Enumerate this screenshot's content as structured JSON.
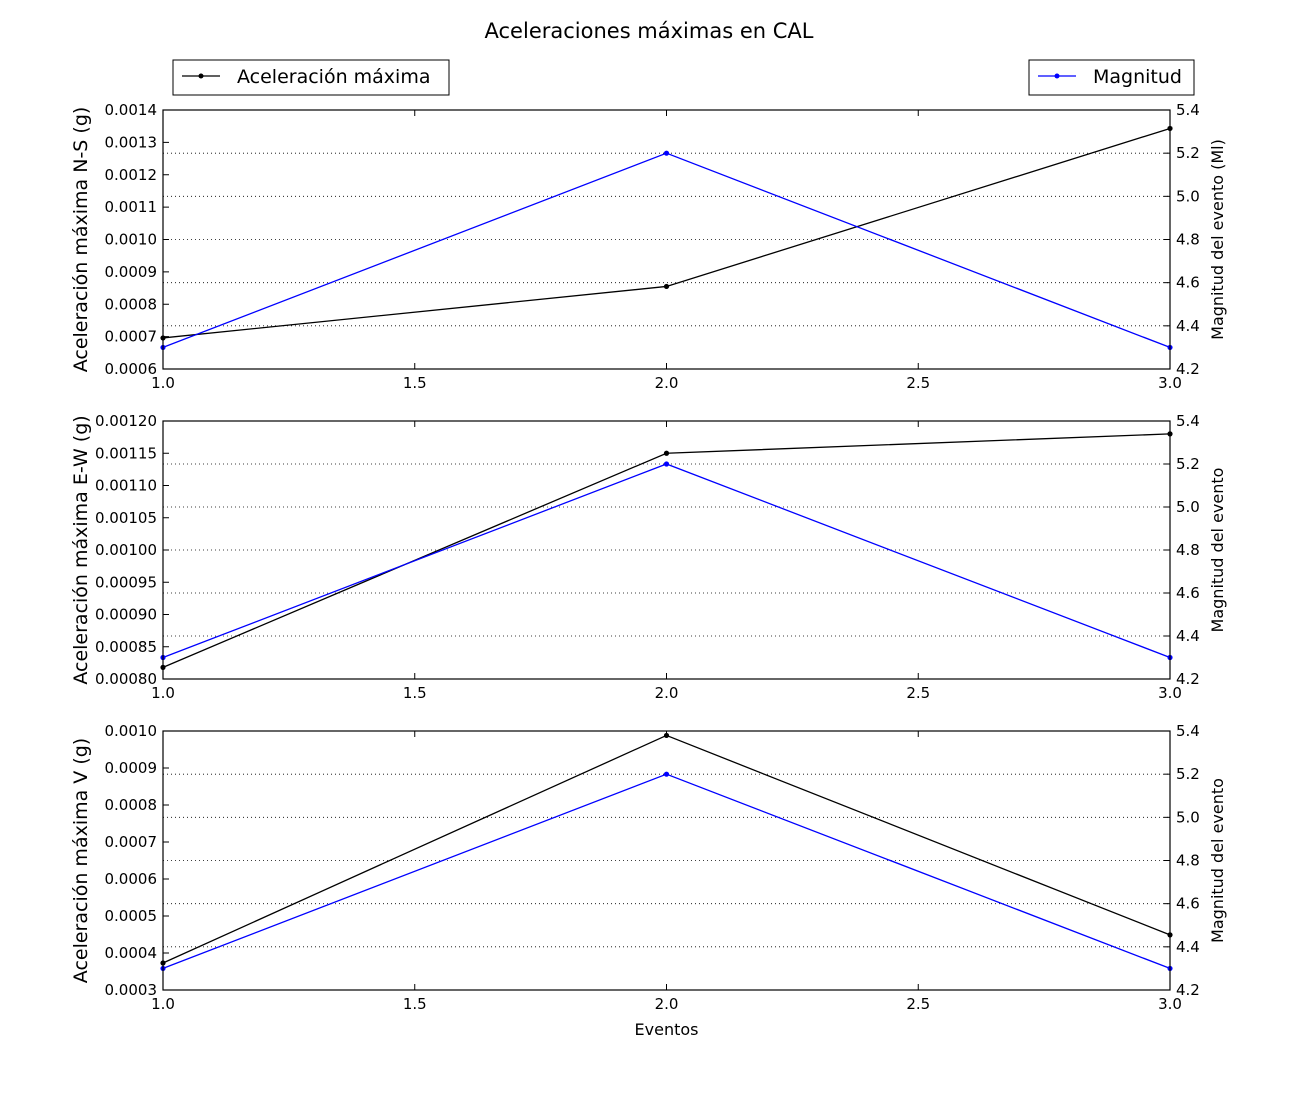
{
  "figure": {
    "title": "Aceleraciones máximas en CAL"
  },
  "legend": {
    "left": {
      "label": "Aceleración máxima",
      "color": "#000000"
    },
    "right": {
      "label": "Magnitud",
      "color": "#0000ff"
    }
  },
  "chart_data": [
    {
      "type": "line",
      "x": [
        1.0,
        2.0,
        3.0
      ],
      "xlim": [
        1.0,
        3.0
      ],
      "xticks": [
        "1.0",
        "1.5",
        "2.0",
        "2.5",
        "3.0"
      ],
      "xlabel": "",
      "ylabel": "Aceleración máxima N-S (g)",
      "ylim": [
        0.0006,
        0.0014
      ],
      "yticks": [
        "0.0006",
        "0.0007",
        "0.0008",
        "0.0009",
        "0.0010",
        "0.0011",
        "0.0012",
        "0.0013",
        "0.0014"
      ],
      "y2label": "Magnitud del evento (Ml)",
      "y2lim": [
        4.2,
        5.4
      ],
      "y2ticks": [
        "4.2",
        "4.4",
        "4.6",
        "4.8",
        "5.0",
        "5.2",
        "5.4"
      ],
      "grid": "y2 dotted",
      "series": [
        {
          "name": "Aceleración máxima",
          "axis": "left",
          "color": "#000000",
          "values": [
            0.000696,
            0.000855,
            0.001343
          ]
        },
        {
          "name": "Magnitud",
          "axis": "right",
          "color": "#0000ff",
          "values": [
            4.3,
            5.2,
            4.3
          ]
        }
      ]
    },
    {
      "type": "line",
      "x": [
        1.0,
        2.0,
        3.0
      ],
      "xlim": [
        1.0,
        3.0
      ],
      "xticks": [
        "1.0",
        "1.5",
        "2.0",
        "2.5",
        "3.0"
      ],
      "xlabel": "",
      "ylabel": "Aceleración máxima E-W (g)",
      "ylim": [
        0.0008,
        0.0012
      ],
      "yticks": [
        "0.00080",
        "0.00085",
        "0.00090",
        "0.00095",
        "0.00100",
        "0.00105",
        "0.00110",
        "0.00115",
        "0.00120"
      ],
      "y2label": "Magnitud del evento",
      "y2lim": [
        4.2,
        5.4
      ],
      "y2ticks": [
        "4.2",
        "4.4",
        "4.6",
        "4.8",
        "5.0",
        "5.2",
        "5.4"
      ],
      "grid": "y2 dotted",
      "series": [
        {
          "name": "Aceleración máxima",
          "axis": "left",
          "color": "#000000",
          "values": [
            0.000818,
            0.00115,
            0.00118
          ]
        },
        {
          "name": "Magnitud",
          "axis": "right",
          "color": "#0000ff",
          "values": [
            4.3,
            5.2,
            4.3
          ]
        }
      ]
    },
    {
      "type": "line",
      "x": [
        1.0,
        2.0,
        3.0
      ],
      "xlim": [
        1.0,
        3.0
      ],
      "xticks": [
        "1.0",
        "1.5",
        "2.0",
        "2.5",
        "3.0"
      ],
      "xlabel": "Eventos",
      "ylabel": "Aceleración máxima V (g)",
      "ylim": [
        0.0003,
        0.001
      ],
      "yticks": [
        "0.0003",
        "0.0004",
        "0.0005",
        "0.0006",
        "0.0007",
        "0.0008",
        "0.0009",
        "0.0010"
      ],
      "y2label": "Magnitud del evento",
      "y2lim": [
        4.2,
        5.4
      ],
      "y2ticks": [
        "4.2",
        "4.4",
        "4.6",
        "4.8",
        "5.0",
        "5.2",
        "5.4"
      ],
      "grid": "y2 dotted",
      "series": [
        {
          "name": "Aceleración máxima",
          "axis": "left",
          "color": "#000000",
          "values": [
            0.000373,
            0.000988,
            0.000449
          ]
        },
        {
          "name": "Magnitud",
          "axis": "right",
          "color": "#0000ff",
          "values": [
            4.3,
            5.2,
            4.3
          ]
        }
      ]
    }
  ]
}
